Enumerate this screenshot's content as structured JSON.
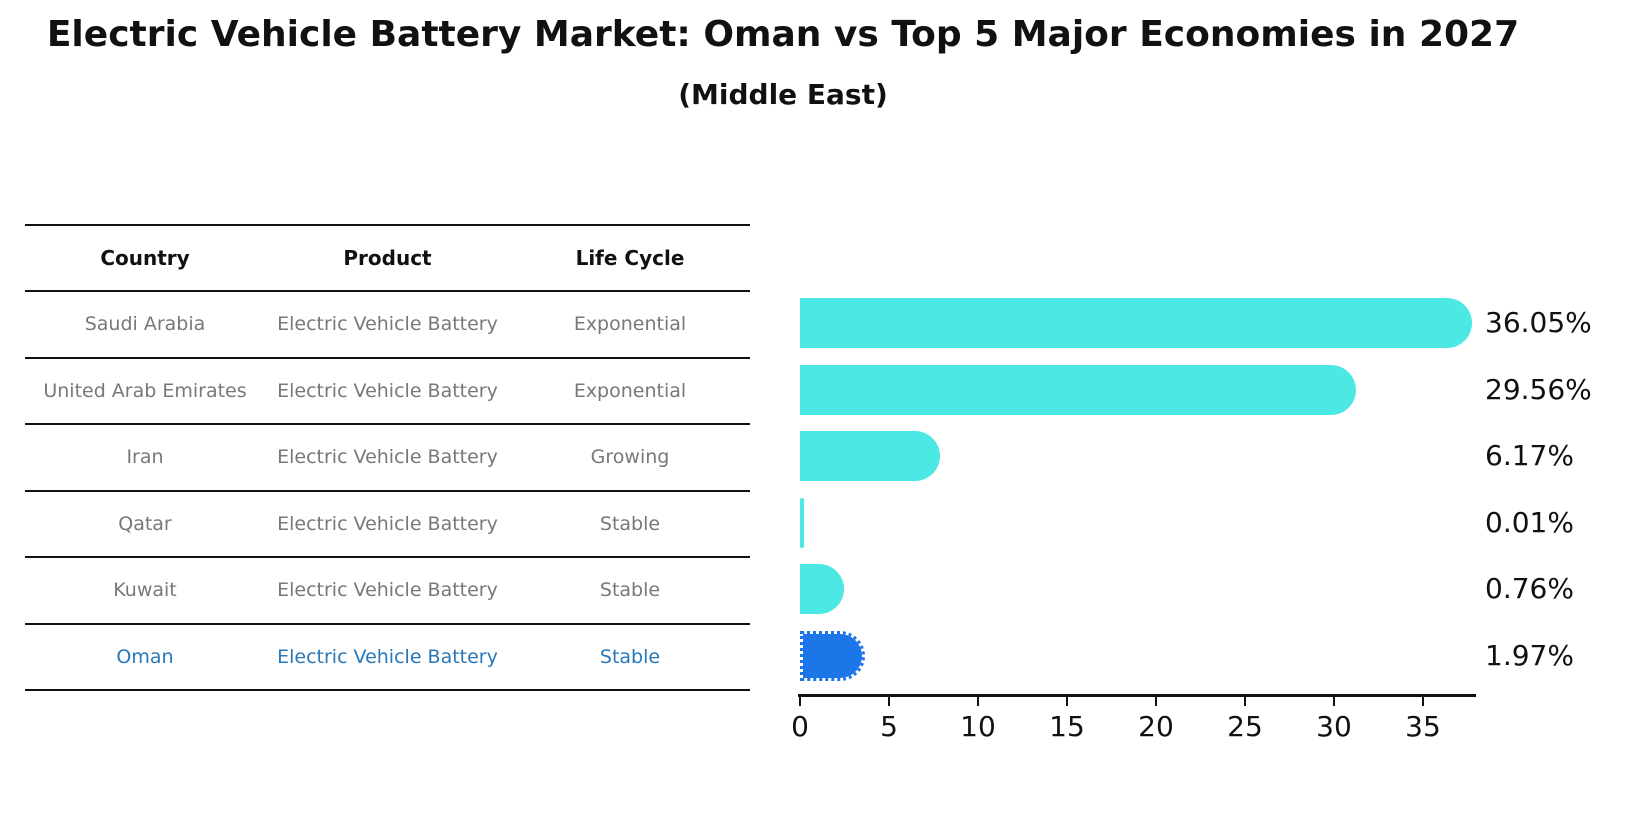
{
  "header": {
    "title": "Electric Vehicle Battery Market: Oman vs Top 5 Major Economies in 2027",
    "subtitle": "(Middle East)"
  },
  "chart_data": {
    "type": "bar",
    "orientation": "horizontal",
    "title": "Electric Vehicle Battery Market: Oman vs Top 5 Major Economies in 2027",
    "subtitle": "(Middle East)",
    "table_headers": [
      "Country",
      "Product",
      "Life Cycle"
    ],
    "categories": [
      "Saudi Arabia",
      "United Arab Emirates",
      "Iran",
      "Qatar",
      "Kuwait",
      "Oman"
    ],
    "values": [
      36.05,
      29.56,
      6.17,
      0.01,
      0.76,
      1.97
    ],
    "value_labels": [
      "36.05%",
      "29.56%",
      "6.17%",
      "0.01%",
      "0.76%",
      "1.97%"
    ],
    "rows": [
      {
        "country": "Saudi Arabia",
        "product": "Electric Vehicle Battery",
        "life_cycle": "Exponential",
        "value": 36.05,
        "label": "36.05%",
        "highlighted": false
      },
      {
        "country": "United Arab Emirates",
        "product": "Electric Vehicle Battery",
        "life_cycle": "Exponential",
        "value": 29.56,
        "label": "29.56%",
        "highlighted": false
      },
      {
        "country": "Iran",
        "product": "Electric Vehicle Battery",
        "life_cycle": "Growing",
        "value": 6.17,
        "label": "6.17%",
        "highlighted": false
      },
      {
        "country": "Qatar",
        "product": "Electric Vehicle Battery",
        "life_cycle": "Stable",
        "value": 0.01,
        "label": "0.01%",
        "highlighted": false
      },
      {
        "country": "Kuwait",
        "product": "Electric Vehicle Battery",
        "life_cycle": "Stable",
        "value": 0.76,
        "label": "0.76%",
        "highlighted": false
      },
      {
        "country": "Oman",
        "product": "Electric Vehicle Battery",
        "life_cycle": "Stable",
        "value": 1.97,
        "label": "1.97%",
        "highlighted": true
      }
    ],
    "xticks": [
      0,
      5,
      10,
      15,
      20,
      25,
      30,
      35
    ],
    "xlim": [
      0,
      37.9
    ],
    "grid": false,
    "legend": null,
    "colors": {
      "bar": "#4BE8E4",
      "highlight_bar": "#1C76E8",
      "highlight_text": "#2878B9",
      "row_text": "#787878",
      "header_text": "#111111",
      "axis": "#111111"
    }
  }
}
